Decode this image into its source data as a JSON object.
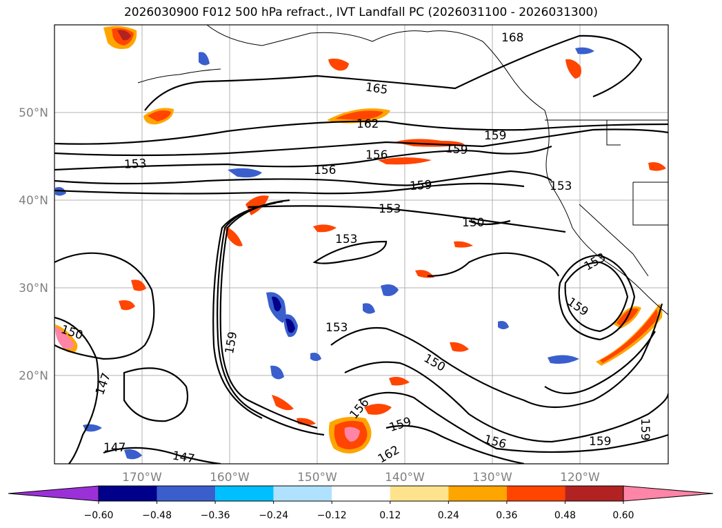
{
  "title": "2026030900 F012 500 hPa refract., IVT Landfall PC (2026031100 - 2026031300)",
  "map": {
    "lat_labels": [
      "50°N",
      "40°N",
      "30°N",
      "20°N"
    ],
    "lon_labels": [
      "170°W",
      "160°W",
      "150°W",
      "140°W",
      "130°W",
      "120°W"
    ]
  },
  "contour_labels": [
    "168",
    "165",
    "162",
    "159",
    "156",
    "153",
    "150",
    "147"
  ],
  "colorbar": {
    "ticks": [
      "−0.60",
      "−0.48",
      "−0.36",
      "−0.24",
      "−0.12",
      "0.12",
      "0.24",
      "0.36",
      "0.48",
      "0.60"
    ],
    "colors": [
      "#9b30d9",
      "#00008b",
      "#3a5fcd",
      "#00bfff",
      "#b0e2ff",
      "#ffffff",
      "#ffe38c",
      "#ffa500",
      "#ff4500",
      "#b22222",
      "#ff85a8"
    ]
  },
  "colors": {
    "positive_accent": "#ff4500",
    "negative_accent": "#3a5fcd",
    "grid": "#b0b0b0"
  }
}
